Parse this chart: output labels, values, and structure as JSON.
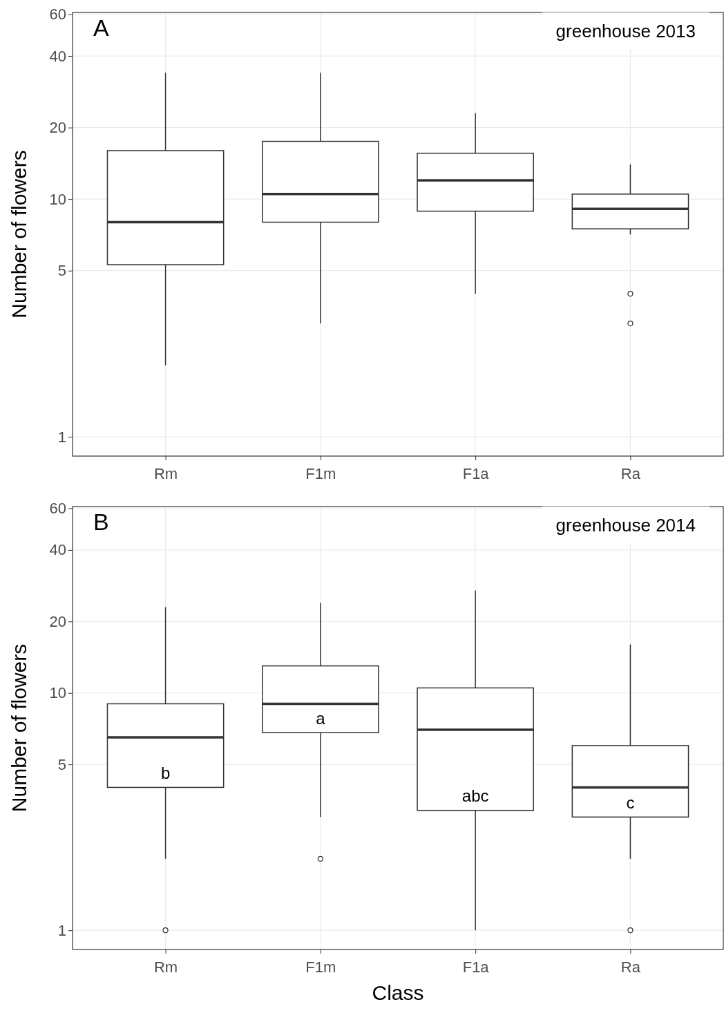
{
  "chart_data": [
    {
      "type": "box",
      "categories": [
        "Rm",
        "F1m",
        "F1a",
        "Ra"
      ],
      "ylabel": "Number of flowers",
      "log": "y",
      "grid": true,
      "ylim": [
        0.83,
        61
      ],
      "yticks": [
        1,
        5,
        10,
        20,
        40,
        60
      ],
      "annotations": [
        "A",
        "greenhouse 2013"
      ],
      "boxes": [
        {
          "low": 2.0,
          "q1": 5.3,
          "median": 8.0,
          "q3": 16,
          "high": 34
        },
        {
          "low": 3.0,
          "q1": 8.0,
          "median": 10.5,
          "q3": 17.5,
          "high": 34
        },
        {
          "low": 4.0,
          "q1": 8.9,
          "median": 12,
          "q3": 15.6,
          "high": 23
        },
        {
          "low": 7.1,
          "q1": 7.5,
          "median": 9.1,
          "q3": 10.5,
          "high": 14,
          "outliers": [
            4.0,
            3.0
          ]
        }
      ]
    },
    {
      "type": "box",
      "categories": [
        "Rm",
        "F1m",
        "F1a",
        "Ra"
      ],
      "xlabel": "Class",
      "ylabel": "Number of flowers",
      "log": "y",
      "grid": true,
      "ylim": [
        0.83,
        61
      ],
      "yticks": [
        1,
        5,
        10,
        20,
        40,
        60
      ],
      "annotations": [
        "B",
        "greenhouse 2014",
        "b",
        "a",
        "abc",
        "c"
      ],
      "boxes": [
        {
          "low": 2.0,
          "q1": 4.0,
          "median": 6.5,
          "q3": 9.0,
          "high": 23,
          "outliers": [
            1
          ]
        },
        {
          "low": 3.0,
          "q1": 6.8,
          "median": 9.0,
          "q3": 13,
          "high": 24,
          "outliers": [
            2.0
          ]
        },
        {
          "low": 1,
          "q1": 3.2,
          "median": 7.0,
          "q3": 10.5,
          "high": 27
        },
        {
          "low": 2.0,
          "q1": 3.0,
          "median": 4.0,
          "q3": 6.0,
          "high": 16,
          "outliers": [
            1
          ]
        }
      ]
    }
  ]
}
